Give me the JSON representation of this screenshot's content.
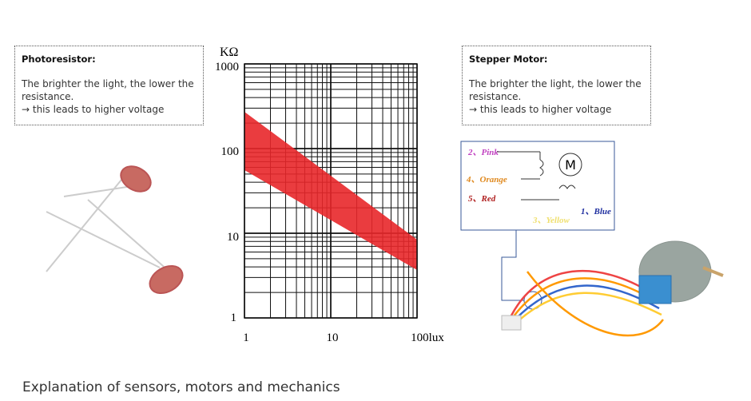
{
  "left_box": {
    "title": "Photoresistor:",
    "text": "The brighter the light, the lower the resistance.",
    "note": "→ this leads to higher voltage"
  },
  "right_box": {
    "title": "Stepper Motor:",
    "text": "The brighter the light, the lower the resistance.",
    "note": "→ this leads to higher voltage"
  },
  "graph": {
    "unit": "KΩ",
    "y_labels": [
      "1000",
      "100",
      "10",
      "1"
    ],
    "x_labels": [
      "1",
      "10",
      "100lux"
    ]
  },
  "wiring": {
    "labels": [
      "2、Pink",
      "4、Orange",
      "5、Red",
      "1、Blue",
      "3、Yellow"
    ],
    "motor": "M"
  },
  "footer": "Explanation of sensors, motors and mechanics"
}
